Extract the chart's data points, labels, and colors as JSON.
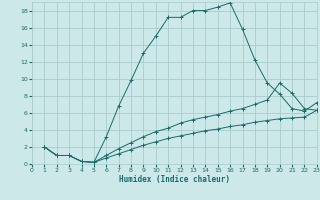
{
  "xlabel": "Humidex (Indice chaleur)",
  "bg_color": "#cce8e8",
  "grid_color": "#aacccc",
  "line_color": "#1a6b6b",
  "xlim": [
    0,
    23
  ],
  "ylim": [
    0,
    19
  ],
  "curve1_x": [
    1,
    2,
    3,
    4,
    5,
    6,
    7,
    8,
    9,
    10,
    11,
    12,
    13,
    14,
    15,
    16,
    17,
    18,
    19,
    20,
    21,
    22,
    23
  ],
  "curve1_y": [
    2.0,
    1.0,
    1.0,
    0.3,
    0.2,
    3.2,
    6.8,
    9.8,
    13.0,
    15.0,
    17.2,
    17.2,
    18.0,
    18.0,
    18.4,
    18.9,
    15.8,
    12.2,
    9.5,
    8.2,
    6.5,
    6.2,
    7.2
  ],
  "curve2_x": [
    1,
    2,
    3,
    4,
    5,
    6,
    7,
    8,
    9,
    10,
    11,
    12,
    13,
    14,
    15,
    16,
    17,
    18,
    19,
    20,
    21,
    22,
    23
  ],
  "curve2_y": [
    2.0,
    1.0,
    1.0,
    0.3,
    0.2,
    1.0,
    1.8,
    2.5,
    3.2,
    3.8,
    4.2,
    4.8,
    5.2,
    5.5,
    5.8,
    6.2,
    6.5,
    7.0,
    7.5,
    9.5,
    8.3,
    6.5,
    6.3
  ],
  "curve3_x": [
    1,
    2,
    3,
    4,
    5,
    6,
    7,
    8,
    9,
    10,
    11,
    12,
    13,
    14,
    15,
    16,
    17,
    18,
    19,
    20,
    21,
    22,
    23
  ],
  "curve3_y": [
    2.0,
    1.0,
    1.0,
    0.3,
    0.2,
    0.7,
    1.2,
    1.7,
    2.2,
    2.6,
    3.0,
    3.3,
    3.6,
    3.9,
    4.1,
    4.4,
    4.6,
    4.9,
    5.1,
    5.3,
    5.4,
    5.5,
    6.3
  ]
}
